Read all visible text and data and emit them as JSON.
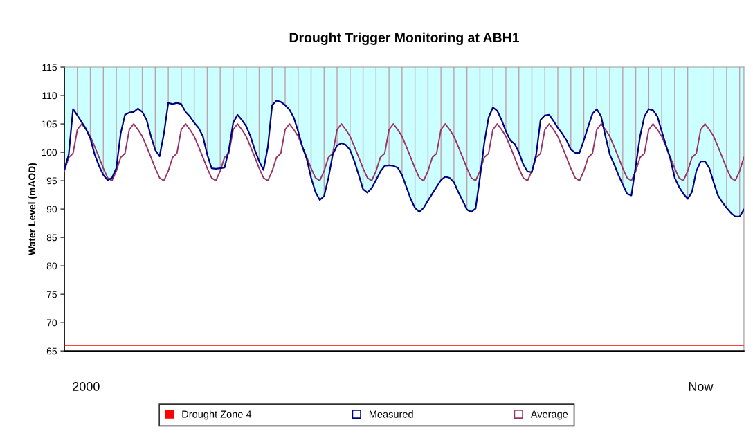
{
  "chart_data": {
    "type": "line",
    "title": "Drought Trigger Monitoring at ABH1",
    "ylabel": "Water Level (mAOD)",
    "categories": [
      null,
      null,
      null,
      null,
      null,
      "2000",
      null,
      null,
      null,
      null,
      null,
      null,
      null,
      null,
      null,
      null,
      null,
      null,
      null,
      null,
      null,
      null,
      null,
      null,
      null,
      null,
      null,
      null,
      null,
      null,
      null,
      null,
      null,
      null,
      null,
      null,
      null,
      null,
      null,
      null,
      null,
      null,
      null,
      null,
      null,
      null,
      null,
      null,
      null,
      null,
      null,
      null,
      null,
      null,
      null,
      null,
      null,
      null,
      null,
      null,
      null,
      null,
      null,
      null,
      null,
      null,
      null,
      null,
      null,
      null,
      null,
      null,
      null,
      null,
      null,
      null,
      null,
      null,
      null,
      null,
      null,
      null,
      null,
      null,
      null,
      null,
      null,
      null,
      null,
      null,
      null,
      null,
      null,
      null,
      null,
      null,
      null,
      null,
      null,
      null,
      null,
      null,
      null,
      null,
      null,
      null,
      null,
      null,
      null,
      null,
      null,
      null,
      null,
      null,
      null,
      null,
      null,
      null,
      null,
      null,
      null,
      null,
      null,
      null,
      null,
      null,
      null,
      null,
      null,
      null,
      null,
      null,
      null,
      null,
      null,
      null,
      null,
      null,
      null,
      null,
      null,
      null,
      null,
      null,
      null,
      null,
      null,
      "Now",
      null,
      null,
      null,
      null,
      null,
      null,
      null,
      null,
      null,
      null
    ],
    "series": [
      {
        "name": "Measured",
        "type": "area",
        "color": "#000080",
        "values": [
          97.0,
          99.6,
          107.6,
          106.5,
          105.3,
          104.1,
          102.4,
          99.6,
          97.6,
          96.0,
          95.1,
          95.5,
          97.2,
          103.3,
          106.6,
          107.0,
          107.1,
          107.7,
          107.1,
          105.7,
          102.8,
          100.4,
          99.3,
          103.3,
          108.7,
          108.5,
          108.7,
          108.5,
          107.1,
          106.3,
          105.2,
          104.3,
          102.8,
          99.6,
          97.2,
          97.1,
          97.2,
          97.3,
          100.4,
          105.2,
          106.6,
          105.7,
          104.6,
          102.8,
          100.4,
          98.4,
          96.9,
          100.9,
          108.3,
          109.1,
          108.9,
          108.3,
          107.5,
          106.1,
          103.7,
          100.9,
          98.8,
          95.5,
          93.0,
          91.6,
          92.3,
          95.5,
          99.6,
          101.2,
          101.6,
          101.3,
          100.4,
          98.4,
          96.0,
          93.5,
          92.9,
          93.7,
          95.1,
          96.6,
          97.6,
          97.7,
          97.6,
          97.3,
          96.0,
          93.9,
          91.8,
          90.2,
          89.5,
          90.2,
          91.5,
          92.7,
          93.9,
          95.1,
          95.7,
          95.5,
          94.7,
          93.0,
          91.5,
          89.9,
          89.5,
          90.1,
          95.5,
          101.6,
          106.1,
          107.9,
          107.3,
          105.7,
          103.7,
          102.1,
          101.5,
          100.0,
          97.9,
          96.6,
          96.5,
          99.6,
          105.7,
          106.5,
          106.6,
          105.5,
          104.3,
          103.3,
          102.1,
          100.5,
          99.9,
          99.9,
          102.1,
          104.5,
          106.8,
          107.6,
          106.3,
          102.8,
          99.6,
          97.9,
          96.0,
          94.3,
          92.7,
          92.4,
          97.6,
          102.8,
          106.3,
          107.6,
          107.4,
          106.3,
          103.7,
          101.2,
          98.8,
          95.5,
          93.9,
          92.7,
          91.8,
          93.0,
          96.7,
          98.4,
          98.4,
          97.2,
          94.7,
          92.4,
          91.2,
          90.2,
          89.3,
          88.7,
          88.7,
          89.9
        ]
      },
      {
        "name": "Average",
        "color": "#993366",
        "values": [
          96.7,
          99.1,
          99.8,
          104,
          105,
          104,
          102.8,
          101,
          99.1,
          97.2,
          95.5,
          95,
          96.7,
          99.1,
          99.8,
          104,
          105,
          104,
          102.8,
          101,
          99.1,
          97.2,
          95.5,
          95,
          96.7,
          99.1,
          99.8,
          104,
          105,
          104,
          102.8,
          101,
          99.1,
          97.2,
          95.5,
          95,
          96.7,
          99.1,
          99.8,
          104,
          105,
          104,
          102.8,
          101,
          99.1,
          97.2,
          95.5,
          95,
          96.7,
          99.1,
          99.8,
          104,
          105,
          104,
          102.8,
          101,
          99.1,
          97.2,
          95.5,
          95,
          96.7,
          99.1,
          99.8,
          104,
          105,
          104,
          102.8,
          101,
          99.1,
          97.2,
          95.5,
          95,
          96.7,
          99.1,
          99.8,
          104,
          105,
          104,
          102.8,
          101,
          99.1,
          97.2,
          95.5,
          95,
          96.7,
          99.1,
          99.8,
          104,
          105,
          104,
          102.8,
          101,
          99.1,
          97.2,
          95.5,
          95,
          96.7,
          99.1,
          99.8,
          104,
          105,
          104,
          102.8,
          101,
          99.1,
          97.2,
          95.5,
          95,
          96.7,
          99.1,
          99.8,
          104,
          105,
          104,
          102.8,
          101,
          99.1,
          97.2,
          95.5,
          95,
          96.7,
          99.1,
          99.8,
          104,
          105,
          104,
          102.8,
          101,
          99.1,
          97.2,
          95.5,
          95,
          96.7,
          99.1,
          99.8,
          104,
          105,
          104,
          102.8,
          101,
          99.1,
          97.2,
          95.5,
          95,
          96.7,
          99.1,
          99.8,
          104,
          105,
          104,
          102.8,
          101,
          99.1,
          97.2,
          95.5,
          95,
          96.7,
          99.1
        ]
      }
    ],
    "ref_lines": [
      {
        "axis": "y",
        "value": 66,
        "label": "Drought Zone 4",
        "color": "#ff0000"
      }
    ],
    "ylim": [
      65,
      115
    ],
    "yticks": [
      65,
      70,
      75,
      80,
      85,
      90,
      95,
      100,
      105,
      110,
      115
    ],
    "grid": "x",
    "legend": "bottom"
  }
}
